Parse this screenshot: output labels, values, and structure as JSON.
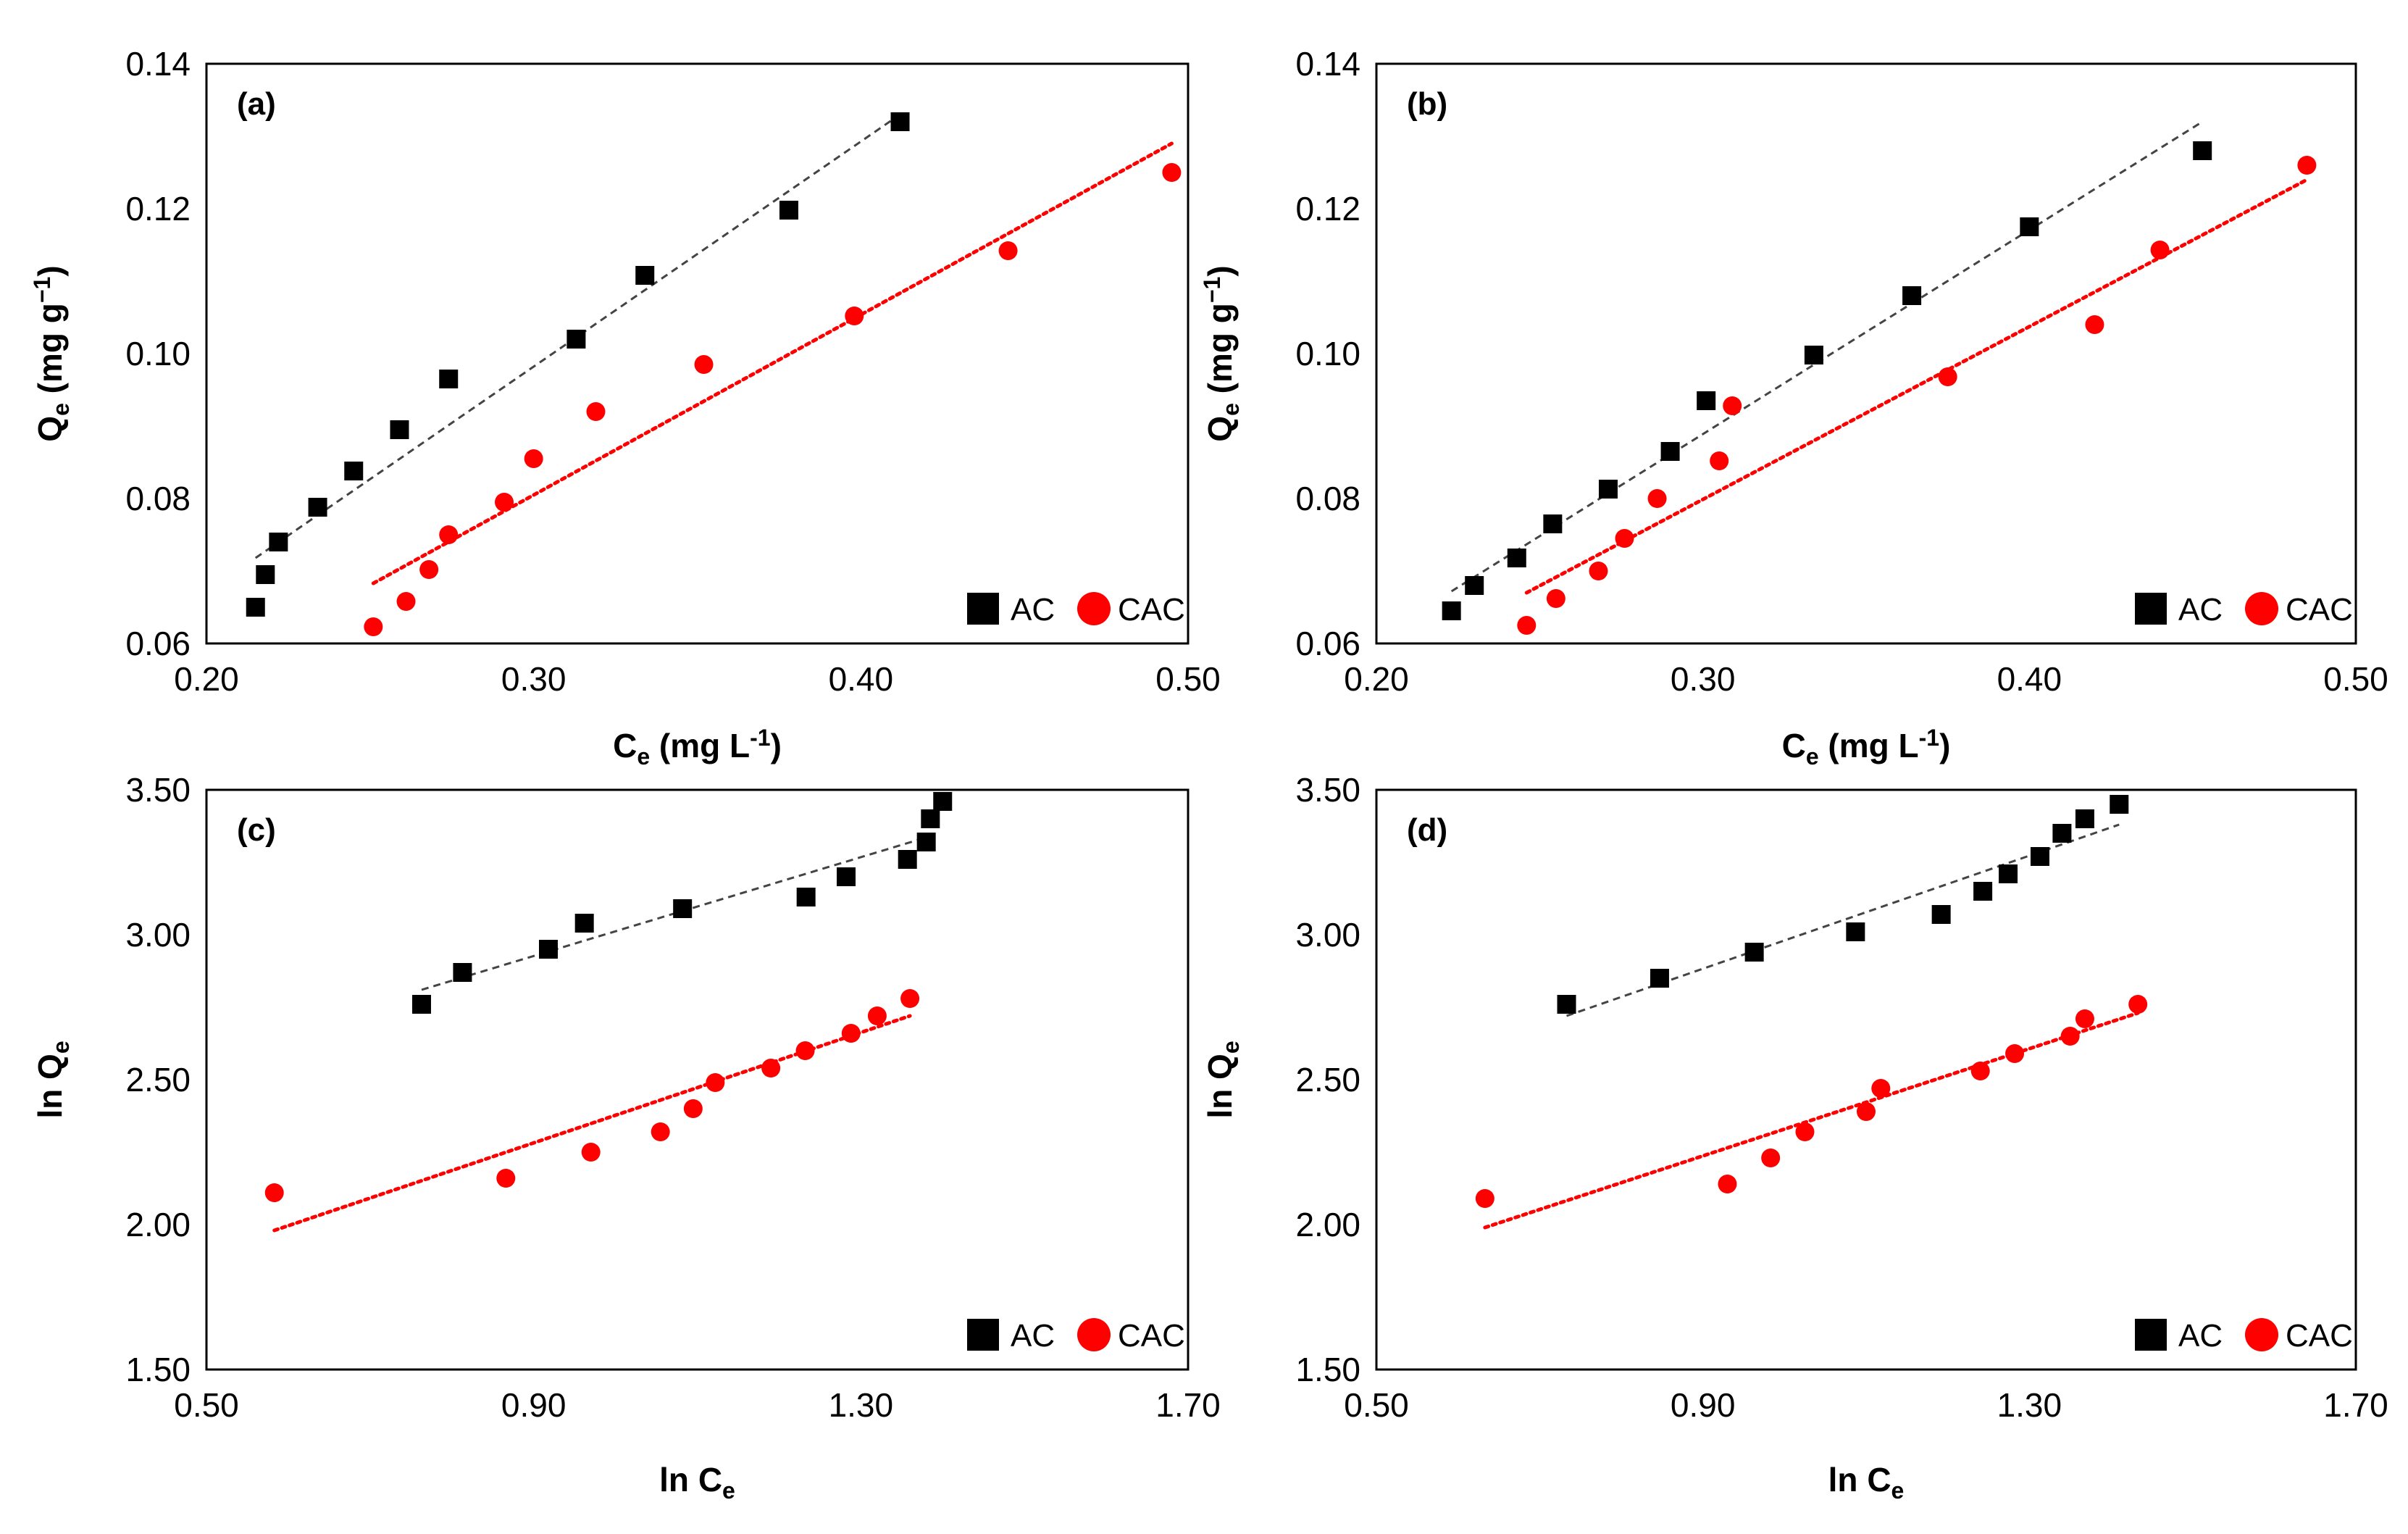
{
  "chart_data": [
    {
      "type": "scatter",
      "panel_label": "(a)",
      "xlabel": {
        "main": "C",
        "sub": "e",
        "units": " (mg L",
        "sup": "-1",
        "close": ")"
      },
      "ylabel": {
        "main": "Q",
        "sub": "e",
        "units": " (mg g",
        "sup": "−1",
        "close": ")"
      },
      "xlim": [
        0.2,
        0.5
      ],
      "ylim": [
        0.06,
        0.14
      ],
      "xticks": [
        "0.20",
        "0.30",
        "0.40",
        "0.50"
      ],
      "yticks": [
        "0.06",
        "0.08",
        "0.10",
        "0.12",
        "0.14"
      ],
      "legend": [
        "AC",
        "CAC"
      ],
      "legend_position": "bottom-right",
      "series": [
        {
          "name": "AC",
          "marker": "square",
          "color": "#000000",
          "x": [
            0.215,
            0.218,
            0.222,
            0.234,
            0.245,
            0.259,
            0.274,
            0.313,
            0.334,
            0.378,
            0.412
          ],
          "y": [
            0.065,
            0.0695,
            0.074,
            0.0788,
            0.0838,
            0.0895,
            0.0965,
            0.102,
            0.1108,
            0.1198,
            0.132
          ],
          "trendline": {
            "x": [
              0.215,
              0.412
            ],
            "y": [
              0.0718,
              0.133
            ],
            "style": "dashed",
            "color": "#444444"
          }
        },
        {
          "name": "CAC",
          "marker": "circle",
          "color": "#ff0000",
          "x": [
            0.251,
            0.261,
            0.268,
            0.274,
            0.291,
            0.3,
            0.319,
            0.352,
            0.398,
            0.445,
            0.495
          ],
          "y": [
            0.0623,
            0.0658,
            0.0702,
            0.075,
            0.0795,
            0.0855,
            0.092,
            0.0985,
            0.1052,
            0.1142,
            0.125
          ],
          "trendline": {
            "x": [
              0.251,
              0.495
            ],
            "y": [
              0.0683,
              0.129
            ],
            "style": "dotted",
            "color": "#ff0000"
          }
        }
      ]
    },
    {
      "type": "scatter",
      "panel_label": "(b)",
      "xlabel": {
        "main": "C",
        "sub": "e",
        "units": " (mg L",
        "sup": "-1",
        "close": ")"
      },
      "ylabel": {
        "main": "Q",
        "sub": "e",
        "units": " (mg g",
        "sup": "−1",
        "close": ")"
      },
      "xlim": [
        0.2,
        0.5
      ],
      "ylim": [
        0.06,
        0.14
      ],
      "xticks": [
        "0.20",
        "0.30",
        "0.40",
        "0.50"
      ],
      "yticks": [
        "0.06",
        "0.08",
        "0.10",
        "0.12",
        "0.14"
      ],
      "legend": [
        "AC",
        "CAC"
      ],
      "legend_position": "bottom-right",
      "series": [
        {
          "name": "AC",
          "marker": "square",
          "color": "#000000",
          "x": [
            0.223,
            0.23,
            0.243,
            0.254,
            0.271,
            0.29,
            0.301,
            0.334,
            0.364,
            0.4,
            0.453
          ],
          "y": [
            0.0645,
            0.068,
            0.0718,
            0.0765,
            0.0813,
            0.0865,
            0.0935,
            0.0998,
            0.108,
            0.1175,
            0.128
          ],
          "trendline": {
            "x": [
              0.223,
              0.453
            ],
            "y": [
              0.0672,
              0.132
            ],
            "style": "dashed",
            "color": "#444444"
          }
        },
        {
          "name": "CAC",
          "marker": "circle",
          "color": "#ff0000",
          "x": [
            0.246,
            0.255,
            0.268,
            0.276,
            0.286,
            0.305,
            0.309,
            0.375,
            0.42,
            0.44,
            0.485
          ],
          "y": [
            0.0625,
            0.0662,
            0.07,
            0.0745,
            0.08,
            0.0852,
            0.0928,
            0.0968,
            0.104,
            0.1143,
            0.126
          ],
          "trendline": {
            "x": [
              0.246,
              0.485
            ],
            "y": [
              0.067,
              0.124
            ],
            "style": "dotted",
            "color": "#ff0000"
          }
        }
      ]
    },
    {
      "type": "scatter",
      "panel_label": "(c)",
      "xlabel": {
        "main": "ln C",
        "sub": "e",
        "units": "",
        "sup": "",
        "close": ""
      },
      "ylabel": {
        "main": "ln Q",
        "sub": "e",
        "units": "",
        "sup": "",
        "close": ""
      },
      "xlim": [
        0.5,
        1.7
      ],
      "ylim": [
        1.5,
        3.5
      ],
      "xticks": [
        "0.50",
        "0.90",
        "1.30",
        "1.70"
      ],
      "yticks": [
        "1.50",
        "2.00",
        "2.50",
        "3.00",
        "3.50"
      ],
      "legend": [
        "AC",
        "CAC"
      ],
      "legend_position": "bottom-right",
      "series": [
        {
          "name": "AC",
          "marker": "square",
          "color": "#000000",
          "x": [
            0.763,
            0.813,
            0.918,
            0.962,
            1.082,
            1.233,
            1.282,
            1.357,
            1.38,
            1.385,
            1.4
          ],
          "y": [
            2.76,
            2.87,
            2.95,
            3.04,
            3.09,
            3.13,
            3.2,
            3.26,
            3.32,
            3.4,
            3.46
          ],
          "trendline": {
            "x": [
              0.763,
              1.385
            ],
            "y": [
              2.81,
              3.34
            ],
            "style": "dashed",
            "color": "#444444"
          }
        },
        {
          "name": "CAC",
          "marker": "circle",
          "color": "#ff0000",
          "x": [
            0.583,
            0.866,
            0.97,
            1.055,
            1.095,
            1.122,
            1.19,
            1.232,
            1.288,
            1.32,
            1.36
          ],
          "y": [
            2.11,
            2.16,
            2.25,
            2.32,
            2.4,
            2.49,
            2.54,
            2.6,
            2.66,
            2.72,
            2.78
          ],
          "trendline": {
            "x": [
              0.583,
              1.36
            ],
            "y": [
              1.98,
              2.72
            ],
            "style": "dotted",
            "color": "#ff0000"
          }
        }
      ]
    },
    {
      "type": "scatter",
      "panel_label": "(d)",
      "xlabel": {
        "main": "ln C",
        "sub": "e",
        "units": "",
        "sup": "",
        "close": ""
      },
      "ylabel": {
        "main": "ln Q",
        "sub": "e",
        "units": "",
        "sup": "",
        "close": ""
      },
      "xlim": [
        0.5,
        1.7
      ],
      "ylim": [
        1.5,
        3.5
      ],
      "xticks": [
        "0.50",
        "0.90",
        "1.30",
        "1.70"
      ],
      "yticks": [
        "1.50",
        "2.00",
        "2.50",
        "3.00",
        "3.50"
      ],
      "legend": [
        "AC",
        "CAC"
      ],
      "legend_position": "bottom-right",
      "series": [
        {
          "name": "AC",
          "marker": "square",
          "color": "#000000",
          "x": [
            0.733,
            0.847,
            0.963,
            1.087,
            1.192,
            1.243,
            1.274,
            1.313,
            1.34,
            1.368,
            1.41
          ],
          "y": [
            2.76,
            2.85,
            2.94,
            3.01,
            3.07,
            3.15,
            3.21,
            3.27,
            3.35,
            3.4,
            3.45
          ],
          "trendline": {
            "x": [
              0.733,
              1.41
            ],
            "y": [
              2.72,
              3.38
            ],
            "style": "dashed",
            "color": "#444444"
          }
        },
        {
          "name": "CAC",
          "marker": "circle",
          "color": "#ff0000",
          "x": [
            0.633,
            0.93,
            0.983,
            1.025,
            1.1,
            1.118,
            1.24,
            1.282,
            1.35,
            1.368,
            1.433
          ],
          "y": [
            2.09,
            2.14,
            2.23,
            2.32,
            2.39,
            2.47,
            2.53,
            2.59,
            2.65,
            2.71,
            2.76
          ],
          "trendline": {
            "x": [
              0.633,
              1.433
            ],
            "y": [
              1.99,
              2.73
            ],
            "style": "dotted",
            "color": "#ff0000"
          }
        }
      ]
    }
  ]
}
